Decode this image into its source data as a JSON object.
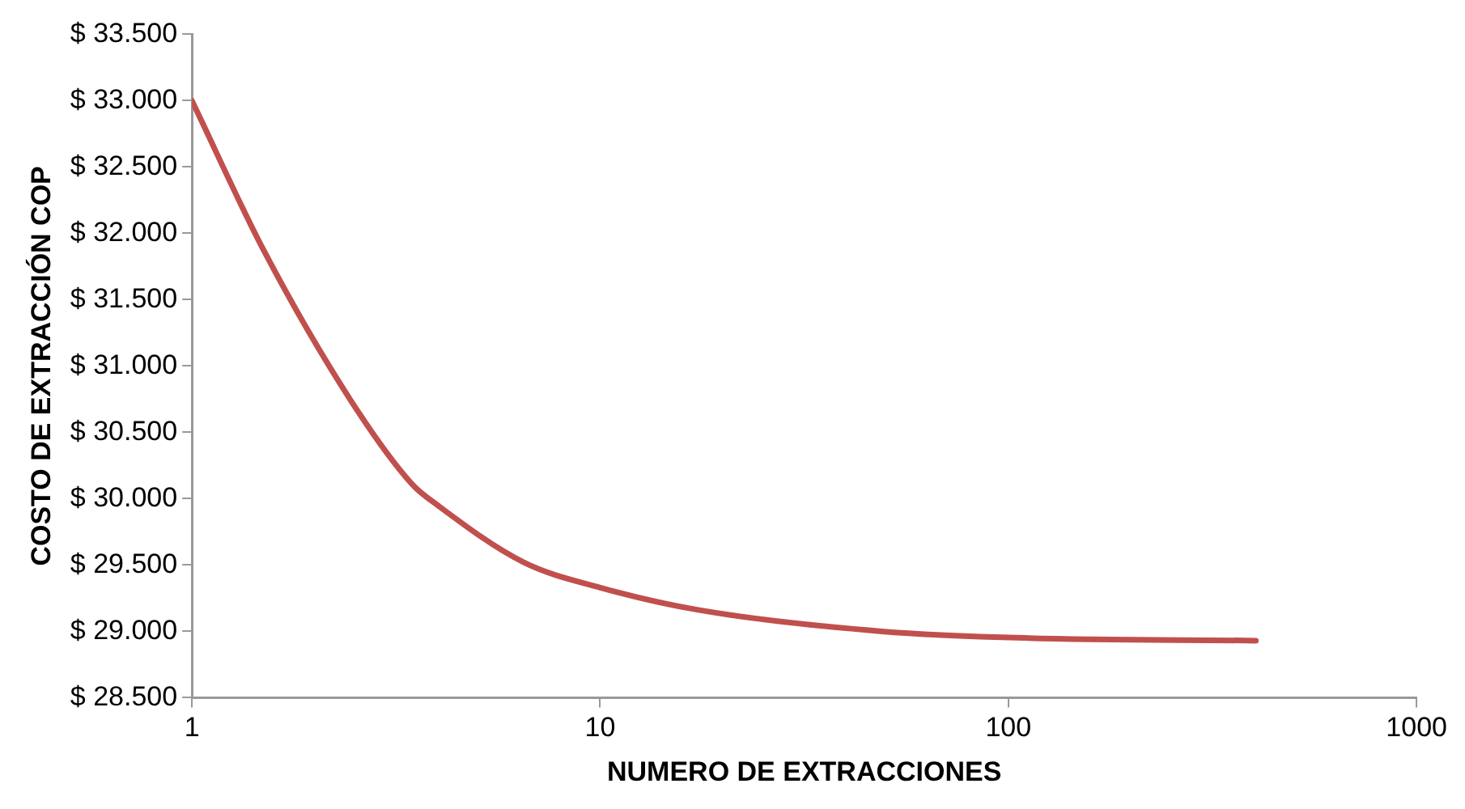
{
  "chart_data": {
    "type": "line",
    "xlabel": "NUMERO DE EXTRACCIONES",
    "ylabel": "COSTO DE EXTRACCIÓN COP",
    "log": "x",
    "grid": false,
    "legend": false,
    "marker": "none",
    "line_style": "solid",
    "xlim": [
      1,
      1000
    ],
    "xticks": [
      1,
      10,
      100,
      1000
    ],
    "ylim": [
      28500,
      33500
    ],
    "yticks": [
      {
        "value": 28500,
        "label": "$ 28.500"
      },
      {
        "value": 29000,
        "label": "$ 29.000"
      },
      {
        "value": 29500,
        "label": "$ 29.500"
      },
      {
        "value": 30000,
        "label": "$ 30.000"
      },
      {
        "value": 30500,
        "label": "$ 30.500"
      },
      {
        "value": 31000,
        "label": "$ 31.000"
      },
      {
        "value": 31500,
        "label": "$ 31.500"
      },
      {
        "value": 32000,
        "label": "$ 32.000"
      },
      {
        "value": 32500,
        "label": "$ 32.500"
      },
      {
        "value": 33000,
        "label": "$ 33.000"
      },
      {
        "value": 33500,
        "label": "$ 33.500"
      }
    ],
    "series": [
      {
        "color": "#c0504d",
        "x": [
          1,
          1.5,
          2.45,
          3.46,
          4,
          6.5,
          10,
          17.5,
          49,
          110,
          404
        ],
        "values": [
          33000,
          31870,
          30740,
          30110,
          29950,
          29520,
          29330,
          29160,
          29000,
          28950,
          28930
        ]
      }
    ]
  }
}
